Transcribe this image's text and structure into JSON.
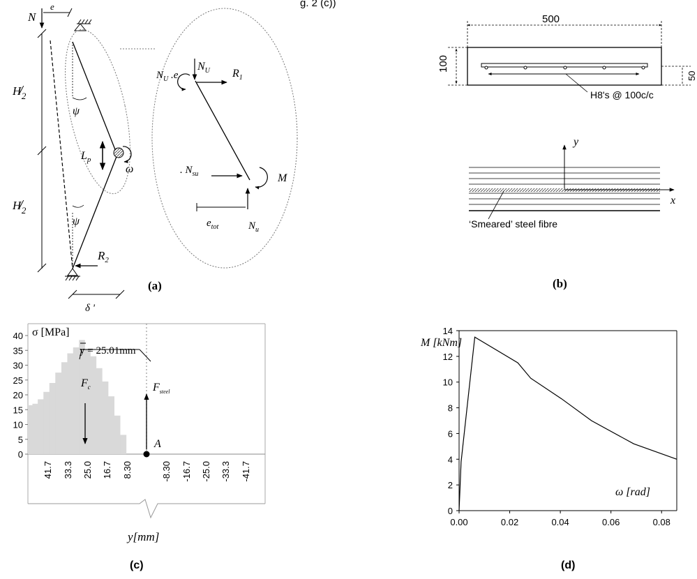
{
  "header_fragment": "g. 2 (c))",
  "panels": {
    "a": {
      "caption": "(a)",
      "labels": {
        "N": "N",
        "e": "e",
        "H_upper": "H",
        "H_lower": "H",
        "half": "2",
        "psi_upper": "ψ",
        "psi_lower": "ψ",
        "Lp": "L",
        "Lp_sub": "p",
        "omega": "ω",
        "R2": "R",
        "R2_sub": "2",
        "delta": "δ '"
      },
      "callout": {
        "NU_e": "N",
        "NU_e_sub": "U",
        "NU_e_tail": " .e",
        "NU": "N",
        "NU_sub": "U",
        "R1": "R",
        "R1_sub": "1",
        "Nsu": ". N",
        "Nsu_sub": "su",
        "M": "M",
        "etot": "e",
        "etot_sub": "tot",
        "NU_bottom": "N",
        "NU_bottom_sub": "u"
      }
    },
    "b": {
      "caption": "(b)",
      "width_label": "500",
      "depth_label": "100",
      "cover_label": "50",
      "rebar_label": "H8's @ 100c/c",
      "axis_y": "y",
      "axis_x": "x",
      "fibre_label": "‘Smeared’ steel fibre"
    },
    "c": {
      "caption": "(c)",
      "ylabel": "σ [MPa]",
      "xlabel": "y[mm]",
      "centroid_label": "y = 25.01mm",
      "Fc": "F",
      "Fc_sub": "c",
      "Fsteel": "F",
      "Fsteel_sub": "steel",
      "point_A": "A"
    },
    "d": {
      "caption": "(d)",
      "ylabel": "M [kNm]",
      "xlabel": "ω [rad]"
    }
  },
  "chart_data": [
    {
      "type": "bar",
      "panel": "c",
      "title": "",
      "ylabel": "σ [MPa]",
      "xlabel": "y[mm]",
      "ylim": [
        0,
        40
      ],
      "yticks": [
        0,
        5,
        10,
        15,
        20,
        25,
        30,
        35,
        40
      ],
      "xlim": [
        50,
        -50
      ],
      "xticks": [
        41.7,
        33.3,
        25.0,
        16.7,
        8.3,
        -8.3,
        -16.7,
        -25.0,
        -33.3,
        -41.7
      ],
      "xtick_labels": [
        "41.7",
        "33.3",
        "25.0",
        "16.7",
        "8.30",
        "-8.30",
        "-16.7",
        "-25.0",
        "-33.3",
        "-41.7"
      ],
      "layer_centres": [
        49.2,
        47.0,
        44.7,
        42.2,
        39.7,
        37.2,
        34.6,
        32.2,
        29.7,
        27.2,
        24.9,
        22.5,
        20.0,
        17.5,
        14.9,
        12.4,
        9.9,
        7.3
      ],
      "values": [
        16.5,
        17,
        18.5,
        21,
        24,
        27.5,
        31,
        34,
        36,
        38.5,
        35.5,
        33,
        29,
        24.5,
        19.5,
        13,
        6.5,
        0
      ],
      "grid": false
    },
    {
      "type": "line",
      "panel": "d",
      "title": "",
      "xlabel": "ω [rad]",
      "ylabel": "M [kNm]",
      "xlim": [
        0,
        0.086
      ],
      "ylim": [
        0,
        14
      ],
      "xticks": [
        0.0,
        0.02,
        0.04,
        0.06,
        0.08
      ],
      "xtick_labels": [
        "0.00",
        "0.02",
        "0.04",
        "0.06",
        "0.08"
      ],
      "yticks": [
        0,
        2,
        4,
        6,
        8,
        10,
        12,
        14
      ],
      "series": [
        {
          "x": [
            0,
            0.0008,
            0.0062,
            0.0232,
            0.0283,
            0.0405,
            0.0523,
            0.069,
            0.086
          ],
          "y": [
            0,
            3.8,
            13.5,
            11.5,
            10.3,
            8.7,
            7.0,
            5.2,
            4.0
          ]
        }
      ],
      "grid": false
    }
  ]
}
